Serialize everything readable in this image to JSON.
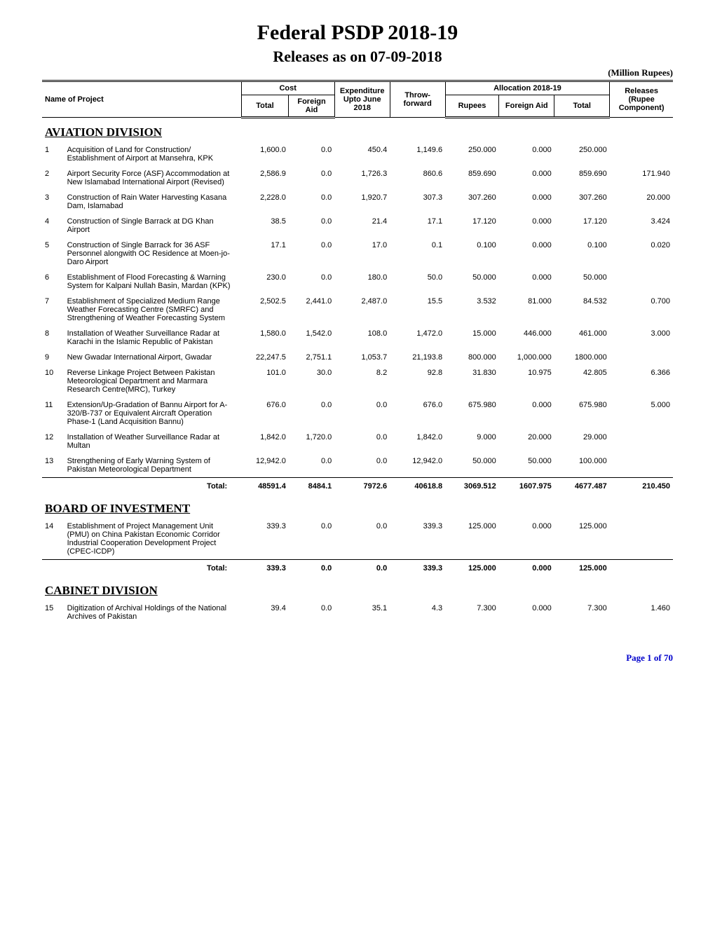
{
  "title": "Federal PSDP 2018-19",
  "subtitle": "Releases as on 07-09-2018",
  "unit_label": "(Million Rupees)",
  "headers": {
    "name": "Name of Project",
    "cost": "Cost",
    "cost_total": "Total",
    "cost_fa": "Foreign Aid",
    "expenditure": "Expenditure Upto June 2018",
    "throw": "Throw-forward",
    "alloc": "Allocation 2018-19",
    "alloc_rupees": "Rupees",
    "alloc_fa": "Foreign Aid",
    "alloc_total": "Total",
    "releases": "Releases (Rupee Component)"
  },
  "sections": [
    {
      "title": "AVIATION DIVISION",
      "rows": [
        {
          "idx": "1",
          "name": "Acquisition of Land for Construction/ Establishment of Airport at Mansehra, KPK",
          "ctot": "1,600.0",
          "cfa": "0.0",
          "exp": "450.4",
          "thr": "1,149.6",
          "rup": "250.000",
          "afa": "0.000",
          "atot": "250.000",
          "rel": ""
        },
        {
          "idx": "2",
          "name": "Airport Security Force (ASF) Accommodation at New Islamabad International Airport (Revised)",
          "ctot": "2,586.9",
          "cfa": "0.0",
          "exp": "1,726.3",
          "thr": "860.6",
          "rup": "859.690",
          "afa": "0.000",
          "atot": "859.690",
          "rel": "171.940"
        },
        {
          "idx": "3",
          "name": "Construction of Rain Water Harvesting Kasana Dam, Islamabad",
          "ctot": "2,228.0",
          "cfa": "0.0",
          "exp": "1,920.7",
          "thr": "307.3",
          "rup": "307.260",
          "afa": "0.000",
          "atot": "307.260",
          "rel": "20.000"
        },
        {
          "idx": "4",
          "name": "Construction of Single Barrack at DG Khan Airport",
          "ctot": "38.5",
          "cfa": "0.0",
          "exp": "21.4",
          "thr": "17.1",
          "rup": "17.120",
          "afa": "0.000",
          "atot": "17.120",
          "rel": "3.424"
        },
        {
          "idx": "5",
          "name": "Construction of Single Barrack for 36 ASF Personnel alongwith OC Residence at Moen-jo-Daro Airport",
          "ctot": "17.1",
          "cfa": "0.0",
          "exp": "17.0",
          "thr": "0.1",
          "rup": "0.100",
          "afa": "0.000",
          "atot": "0.100",
          "rel": "0.020"
        },
        {
          "idx": "6",
          "name": "Establishment of Flood Forecasting & Warning System for Kalpani Nullah Basin, Mardan (KPK)",
          "ctot": "230.0",
          "cfa": "0.0",
          "exp": "180.0",
          "thr": "50.0",
          "rup": "50.000",
          "afa": "0.000",
          "atot": "50.000",
          "rel": ""
        },
        {
          "idx": "7",
          "name": "Establishment of Specialized Medium Range Weather Forecasting Centre (SMRFC) and Strengthening of Weather Forecasting System",
          "ctot": "2,502.5",
          "cfa": "2,441.0",
          "exp": "2,487.0",
          "thr": "15.5",
          "rup": "3.532",
          "afa": "81.000",
          "atot": "84.532",
          "rel": "0.700"
        },
        {
          "idx": "8",
          "name": "Installation of Weather Surveillance Radar at Karachi in the Islamic Republic of Pakistan",
          "ctot": "1,580.0",
          "cfa": "1,542.0",
          "exp": "108.0",
          "thr": "1,472.0",
          "rup": "15.000",
          "afa": "446.000",
          "atot": "461.000",
          "rel": "3.000"
        },
        {
          "idx": "9",
          "name": "New Gwadar International Airport, Gwadar",
          "ctot": "22,247.5",
          "cfa": "2,751.1",
          "exp": "1,053.7",
          "thr": "21,193.8",
          "rup": "800.000",
          "afa": "1,000.000",
          "atot": "1800.000",
          "rel": ""
        },
        {
          "idx": "10",
          "name": "Reverse Linkage Project Between Pakistan Meteorological Department and Marmara Research Centre(MRC), Turkey",
          "ctot": "101.0",
          "cfa": "30.0",
          "exp": "8.2",
          "thr": "92.8",
          "rup": "31.830",
          "afa": "10.975",
          "atot": "42.805",
          "rel": "6.366"
        },
        {
          "idx": "11",
          "name": "Extension/Up-Gradation of Bannu Airport for A-320/B-737 or Equivalent Aircraft Operation Phase-1 (Land Acquisition Bannu)",
          "ctot": "676.0",
          "cfa": "0.0",
          "exp": "0.0",
          "thr": "676.0",
          "rup": "675.980",
          "afa": "0.000",
          "atot": "675.980",
          "rel": "5.000"
        },
        {
          "idx": "12",
          "name": "Installation of Weather Surveillance Radar at Multan",
          "ctot": "1,842.0",
          "cfa": "1,720.0",
          "exp": "0.0",
          "thr": "1,842.0",
          "rup": "9.000",
          "afa": "20.000",
          "atot": "29.000",
          "rel": ""
        },
        {
          "idx": "13",
          "name": "Strengthening of Early Warning System of Pakistan Meteorological Department",
          "ctot": "12,942.0",
          "cfa": "0.0",
          "exp": "0.0",
          "thr": "12,942.0",
          "rup": "50.000",
          "afa": "50.000",
          "atot": "100.000",
          "rel": ""
        }
      ],
      "total": {
        "label": "Total:",
        "ctot": "48591.4",
        "cfa": "8484.1",
        "exp": "7972.6",
        "thr": "40618.8",
        "rup": "3069.512",
        "afa": "1607.975",
        "atot": "4677.487",
        "rel": "210.450"
      }
    },
    {
      "title": "BOARD OF INVESTMENT",
      "rows": [
        {
          "idx": "14",
          "name": "Establishment of Project Management Unit (PMU) on China Pakistan Economic Corridor Industrial Cooperation Development Project (CPEC-ICDP)",
          "ctot": "339.3",
          "cfa": "0.0",
          "exp": "0.0",
          "thr": "339.3",
          "rup": "125.000",
          "afa": "0.000",
          "atot": "125.000",
          "rel": ""
        }
      ],
      "total": {
        "label": "Total:",
        "ctot": "339.3",
        "cfa": "0.0",
        "exp": "0.0",
        "thr": "339.3",
        "rup": "125.000",
        "afa": "0.000",
        "atot": "125.000",
        "rel": ""
      }
    },
    {
      "title": "CABINET DIVISION",
      "rows": [
        {
          "idx": "15",
          "name": "Digitization of Archival Holdings of the National Archives of Pakistan",
          "ctot": "39.4",
          "cfa": "0.0",
          "exp": "35.1",
          "thr": "4.3",
          "rup": "7.300",
          "afa": "0.000",
          "atot": "7.300",
          "rel": "1.460"
        }
      ],
      "total": null
    }
  ],
  "footer": "Page 1 of 70"
}
